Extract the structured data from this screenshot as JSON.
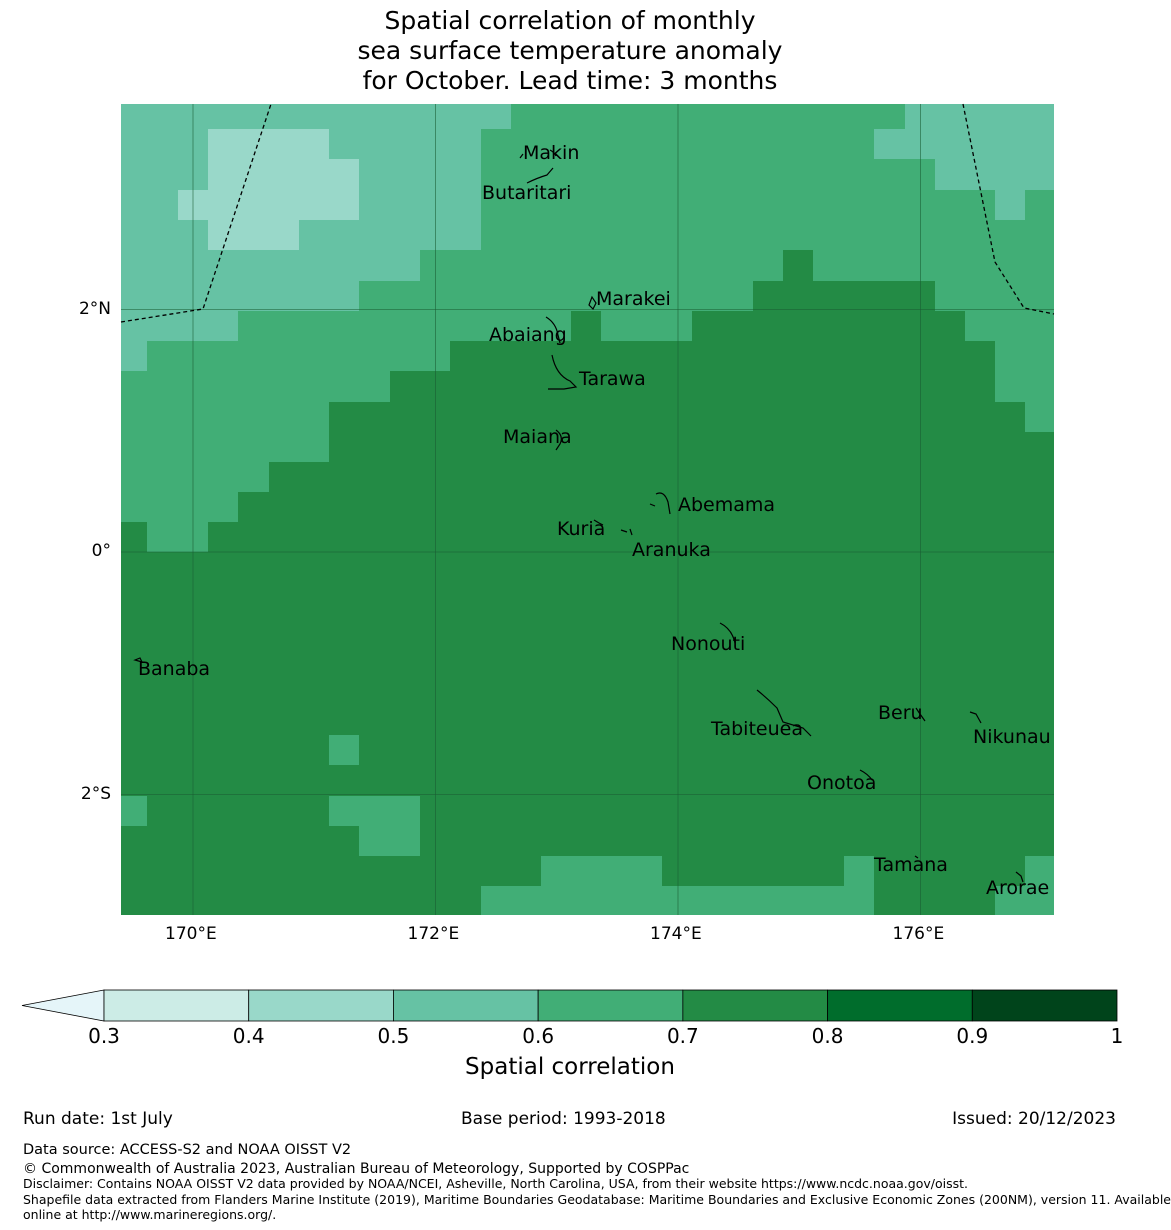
{
  "title": "Spatial correlation of monthly\nsea surface temperature anomaly\n for October. Lead time: 3 months",
  "axes": {
    "x_ticks": [
      {
        "label": "170°E",
        "value": 170
      },
      {
        "label": "172°E",
        "value": 172
      },
      {
        "label": "174°E",
        "value": 174
      },
      {
        "label": "176°E",
        "value": 176
      }
    ],
    "y_ticks": [
      {
        "label": "2°N",
        "value": 2
      },
      {
        "label": "0°",
        "value": 0
      },
      {
        "label": "2°S",
        "value": -2
      }
    ],
    "lon_range": [
      169.4,
      177.1
    ],
    "lat_range": [
      -3.0,
      3.7
    ]
  },
  "colorbar": {
    "label": "Spatial correlation",
    "ticks": [
      "0.3",
      "0.4",
      "0.5",
      "0.6",
      "0.7",
      "0.8",
      "0.9",
      "1"
    ],
    "colors": {
      "below": "#e5f5f9",
      "c1": "#ccece6",
      "c2": "#99d8c9",
      "c3": "#66c2a4",
      "c4": "#41ae76",
      "c5": "#238b45",
      "c6": "#006d2c",
      "c7": "#00441b"
    }
  },
  "islands": [
    {
      "name": "Makin",
      "lon": 173.0,
      "lat": 3.35
    },
    {
      "name": "Butaritari",
      "lon": 172.8,
      "lat": 3.05
    },
    {
      "name": "Marakei",
      "lon": 173.5,
      "lat": 2.07
    },
    {
      "name": "Abaiang",
      "lon": 172.8,
      "lat": 1.82
    },
    {
      "name": "Tarawa",
      "lon": 173.3,
      "lat": 1.45
    },
    {
      "name": "Maiana",
      "lon": 172.9,
      "lat": 0.97
    },
    {
      "name": "Abemama",
      "lon": 174.4,
      "lat": 0.41
    },
    {
      "name": "Kuria",
      "lon": 173.4,
      "lat": 0.22
    },
    {
      "name": "Aranuka",
      "lon": 173.8,
      "lat": 0.03
    },
    {
      "name": "Nonouti",
      "lon": 174.3,
      "lat": -0.75
    },
    {
      "name": "Banaba",
      "lon": 169.8,
      "lat": -0.95
    },
    {
      "name": "Beru",
      "lon": 175.9,
      "lat": -1.33
    },
    {
      "name": "Tabiteuea",
      "lon": 174.7,
      "lat": -1.45
    },
    {
      "name": "Nikunau",
      "lon": 176.8,
      "lat": -1.53
    },
    {
      "name": "Onotoa",
      "lon": 175.5,
      "lat": -1.9
    },
    {
      "name": "Tamana",
      "lon": 176.0,
      "lat": -2.58
    },
    {
      "name": "Arorae",
      "lon": 176.8,
      "lat": -2.77
    }
  ],
  "footer": {
    "run_date": "Run date: 1st July",
    "base_period": "Base period: 1993-2018",
    "issued": "Issued: 20/12/2023",
    "data_source": "Data source: ACCESS-S2 and NOAA OISST V2",
    "copyright": "© Commonwealth of Australia 2023, Australian Bureau of Meteorology, Supported by COSPPac",
    "disclaimer": "Disclaimer: Contains NOAA OISST V2 data provided by NOAA/NCEI, Asheville, North Carolina, USA, from their website https://www.ncdc.noaa.gov/oisst.",
    "shapefile_1": "Shapefile data extracted from Flanders Marine Institute (2019), Maritime Boundaries Geodatabase: Maritime Boundaries and Exclusive Economic Zones (200NM), version 11. Available",
    "shapefile_2": "online at http://www.marineregions.org/."
  }
}
